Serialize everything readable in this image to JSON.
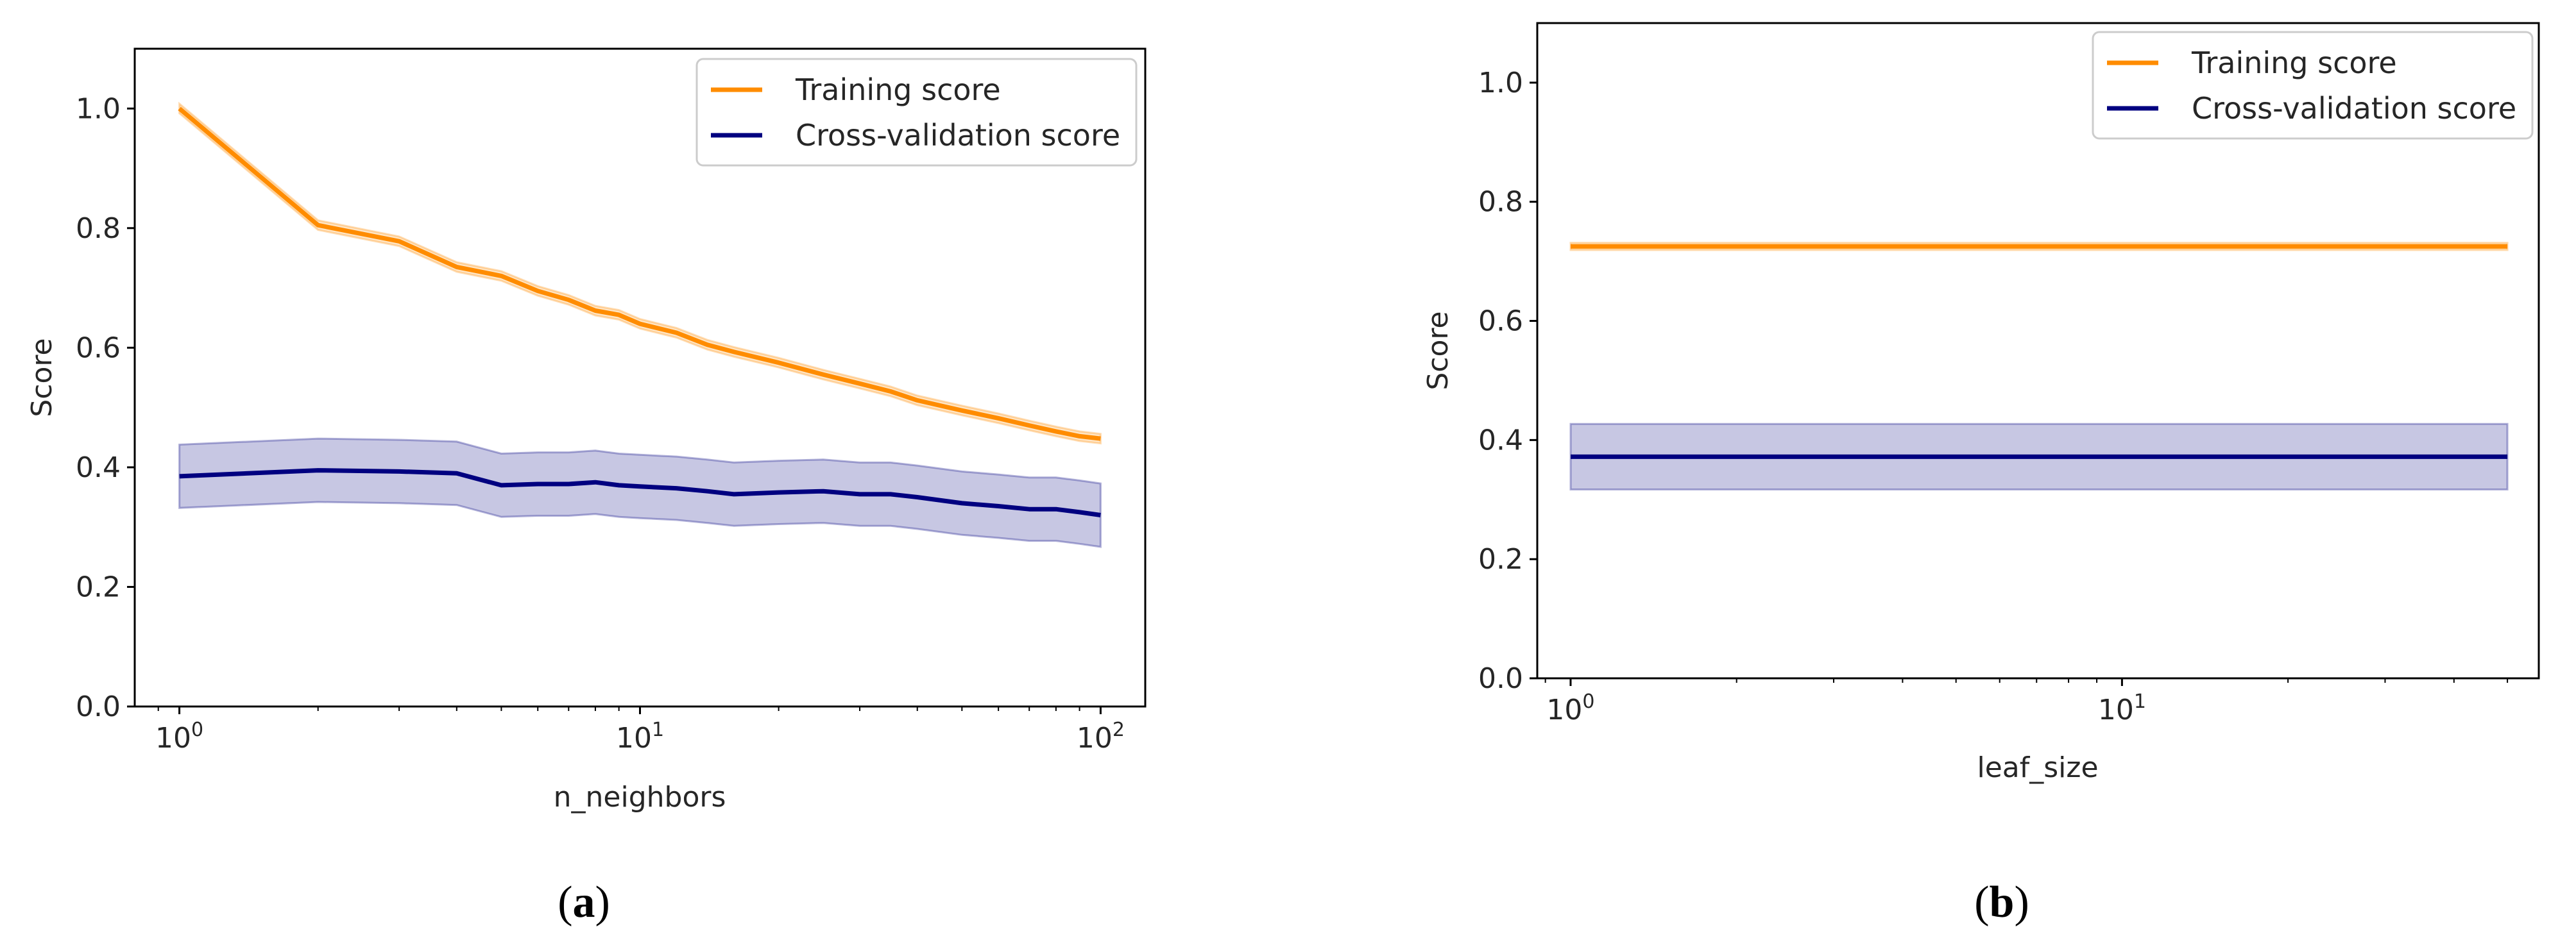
{
  "chart_data": [
    {
      "type": "line",
      "panel_label": "a",
      "xlabel": "n_neighbors",
      "ylabel": "Score",
      "xscale": "log",
      "xlim": [
        0.8,
        125
      ],
      "ylim": [
        0.0,
        1.1
      ],
      "xticks": [
        {
          "base": "10",
          "exp": "0",
          "value": 1
        },
        {
          "base": "10",
          "exp": "1",
          "value": 10
        },
        {
          "base": "10",
          "exp": "2",
          "value": 100
        }
      ],
      "yticks": [
        "0.0",
        "0.2",
        "0.4",
        "0.6",
        "0.8",
        "1.0"
      ],
      "legend_position": "top-right",
      "series": [
        {
          "name": "Training score",
          "color": "#FF8C00",
          "x": [
            1,
            2,
            3,
            4,
            5,
            6,
            7,
            8,
            9,
            10,
            12,
            14,
            16,
            20,
            25,
            30,
            35,
            40,
            50,
            60,
            70,
            80,
            90,
            100
          ],
          "values": [
            1.0,
            0.805,
            0.778,
            0.735,
            0.72,
            0.695,
            0.68,
            0.662,
            0.655,
            0.64,
            0.625,
            0.605,
            0.593,
            0.575,
            0.555,
            0.54,
            0.527,
            0.512,
            0.495,
            0.482,
            0.47,
            0.46,
            0.452,
            0.448
          ],
          "band": 0.008
        },
        {
          "name": "Cross-validation score",
          "color": "#000080",
          "x": [
            1,
            2,
            3,
            4,
            5,
            6,
            7,
            8,
            9,
            10,
            12,
            14,
            16,
            20,
            25,
            30,
            35,
            40,
            50,
            60,
            70,
            80,
            90,
            100
          ],
          "values": [
            0.385,
            0.395,
            0.393,
            0.39,
            0.37,
            0.372,
            0.372,
            0.375,
            0.37,
            0.368,
            0.365,
            0.36,
            0.355,
            0.358,
            0.36,
            0.355,
            0.355,
            0.35,
            0.34,
            0.335,
            0.33,
            0.33,
            0.325,
            0.32
          ],
          "band": 0.053
        }
      ]
    },
    {
      "type": "line",
      "panel_label": "b",
      "xlabel": "leaf_size",
      "ylabel": "Score",
      "xscale": "log",
      "xlim": [
        0.87,
        57
      ],
      "ylim": [
        0.0,
        1.1
      ],
      "xticks": [
        {
          "base": "10",
          "exp": "0",
          "value": 1
        },
        {
          "base": "10",
          "exp": "1",
          "value": 10
        }
      ],
      "yticks": [
        "0.0",
        "0.2",
        "0.4",
        "0.6",
        "0.8",
        "1.0"
      ],
      "legend_position": "top-right",
      "series": [
        {
          "name": "Training score",
          "color": "#FF8C00",
          "x": [
            1,
            50
          ],
          "values": [
            0.725,
            0.725
          ],
          "band": 0.006
        },
        {
          "name": "Cross-validation score",
          "color": "#000080",
          "x": [
            1,
            50
          ],
          "values": [
            0.372,
            0.372
          ],
          "band": 0.055
        }
      ]
    }
  ]
}
